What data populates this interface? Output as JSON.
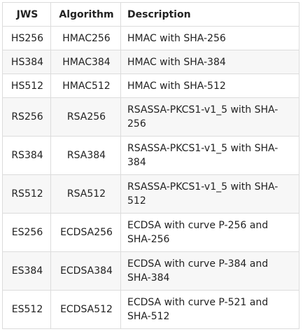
{
  "table": {
    "headers": {
      "jws": "JWS",
      "algorithm": "Algorithm",
      "description": "Description"
    },
    "rows": [
      {
        "jws": "HS256",
        "algorithm": "HMAC256",
        "description": "HMAC with SHA-256",
        "tall": false
      },
      {
        "jws": "HS384",
        "algorithm": "HMAC384",
        "description": "HMAC with SHA-384",
        "tall": false
      },
      {
        "jws": "HS512",
        "algorithm": "HMAC512",
        "description": "HMAC with SHA-512",
        "tall": false
      },
      {
        "jws": "RS256",
        "algorithm": "RSA256",
        "description": "RSASSA-PKCS1-v1_5 with SHA-256",
        "tall": true
      },
      {
        "jws": "RS384",
        "algorithm": "RSA384",
        "description": "RSASSA-PKCS1-v1_5 with SHA-384",
        "tall": true
      },
      {
        "jws": "RS512",
        "algorithm": "RSA512",
        "description": "RSASSA-PKCS1-v1_5 with SHA-512",
        "tall": true
      },
      {
        "jws": "ES256",
        "algorithm": "ECDSA256",
        "description": "ECDSA with curve P-256 and SHA-256",
        "tall": true
      },
      {
        "jws": "ES384",
        "algorithm": "ECDSA384",
        "description": "ECDSA with curve P-384 and SHA-384",
        "tall": true
      },
      {
        "jws": "ES512",
        "algorithm": "ECDSA512",
        "description": "ECDSA with curve P-521 and SHA-512",
        "tall": true
      }
    ]
  }
}
